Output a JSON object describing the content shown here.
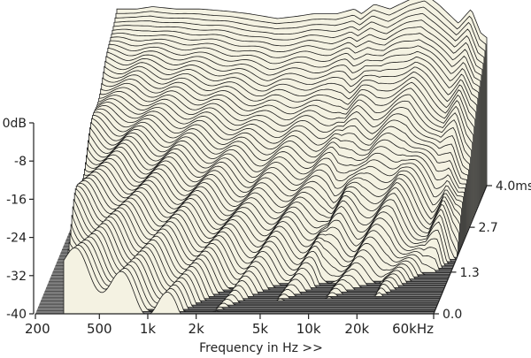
{
  "chart_data": {
    "type": "area",
    "title": "",
    "xlabel": "Frequency in Hz >>",
    "ylabel": "",
    "zlabel": "",
    "x_scale": "log",
    "xlim": [
      200,
      60000
    ],
    "ylim": [
      -40,
      0
    ],
    "x_tick_values": [
      200,
      500,
      1000,
      2000,
      5000,
      10000,
      20000,
      60000
    ],
    "x_tick_labels": [
      "200",
      "500",
      "1k",
      "2k",
      "5k",
      "10k",
      "20k",
      "60kHz"
    ],
    "y_tick_values": [
      0,
      -8,
      -16,
      -24,
      -32,
      -40
    ],
    "y_tick_labels": [
      "0dB",
      "-8",
      "-16",
      "-24",
      "-32",
      "-40"
    ],
    "time_tick_values": [
      0.0,
      1.3,
      2.7,
      4.0
    ],
    "time_tick_labels": [
      "0.0",
      "1.3",
      "2.7",
      "4.0msec"
    ],
    "time_range_ms": [
      0,
      4.0
    ],
    "slice_count": 60,
    "surface_color": "#f4f2e2",
    "floor_color": "#7e7e7e",
    "line_color": "#1a1a1a",
    "initial_response": {
      "x": [
        300,
        400,
        500,
        700,
        1000,
        1500,
        2000,
        3000,
        4000,
        5000,
        7000,
        9000,
        10000,
        12000,
        15000,
        20000,
        25000,
        30000,
        40000,
        48000,
        55000,
        60000
      ],
      "y": [
        -3,
        -3,
        -2.5,
        -3,
        -3,
        -3.5,
        -4,
        -5,
        -4.5,
        -4,
        -4,
        -3,
        -4,
        -2,
        -3,
        -1,
        0,
        -2,
        -6,
        -3,
        -8,
        -9
      ]
    }
  }
}
